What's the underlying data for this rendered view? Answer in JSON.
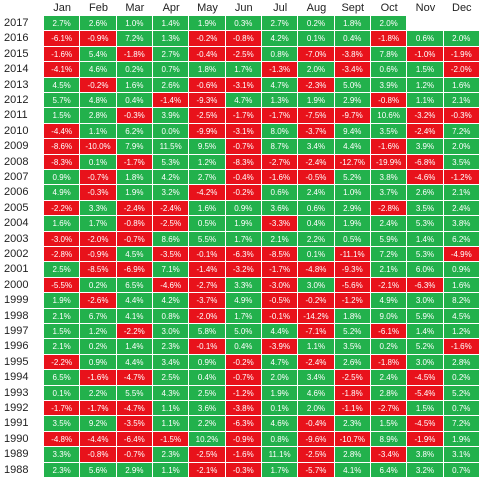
{
  "colors": {
    "positive": "#22b14c",
    "negative": "#e8121b"
  },
  "months": [
    "Jan",
    "Feb",
    "Mar",
    "Apr",
    "May",
    "Jun",
    "Jul",
    "Aug",
    "Sept",
    "Oct",
    "Nov",
    "Dec"
  ],
  "rows": [
    {
      "year": "2017",
      "vals": [
        "2.7%",
        "2.6%",
        "1.0%",
        "1.4%",
        "1.9%",
        "0.3%",
        "2.7%",
        "0.2%",
        "1.8%",
        "2.0%",
        "",
        ""
      ]
    },
    {
      "year": "2016",
      "vals": [
        "-6.1%",
        "-0.9%",
        "7.2%",
        "1.3%",
        "-0.2%",
        "-0.8%",
        "4.2%",
        "0.1%",
        "0.4%",
        "-1.8%",
        "0.6%",
        "2.0%"
      ]
    },
    {
      "year": "2015",
      "vals": [
        "-1.6%",
        "5.4%",
        "-1.8%",
        "2.7%",
        "-0.4%",
        "-2.5%",
        "0.8%",
        "-7.0%",
        "-3.8%",
        "7.8%",
        "-1.0%",
        "-1.9%"
      ]
    },
    {
      "year": "2014",
      "vals": [
        "-4.1%",
        "4.6%",
        "0.2%",
        "0.7%",
        "1.8%",
        "1.7%",
        "-1.3%",
        "2.0%",
        "-3.4%",
        "0.6%",
        "1.5%",
        "-2.0%"
      ]
    },
    {
      "year": "2013",
      "vals": [
        "4.5%",
        "-0.2%",
        "1.6%",
        "2.6%",
        "-0.6%",
        "-3.1%",
        "4.7%",
        "-2.3%",
        "5.0%",
        "3.9%",
        "1.2%",
        "1.6%"
      ]
    },
    {
      "year": "2012",
      "vals": [
        "5.7%",
        "4.8%",
        "0.4%",
        "-1.4%",
        "-9.3%",
        "4.7%",
        "1.3%",
        "1.9%",
        "2.9%",
        "-0.8%",
        "1.1%",
        "2.1%"
      ]
    },
    {
      "year": "2011",
      "vals": [
        "1.5%",
        "2.8%",
        "-0.3%",
        "3.9%",
        "-2.5%",
        "-1.7%",
        "-1.7%",
        "-7.5%",
        "-9.7%",
        "10.6%",
        "-3.2%",
        "-0.3%"
      ]
    },
    {
      "year": "2010",
      "vals": [
        "-4.4%",
        "1.1%",
        "6.2%",
        "0.0%",
        "-9.9%",
        "-3.1%",
        "8.0%",
        "-3.7%",
        "9.4%",
        "3.5%",
        "-2.4%",
        "7.2%"
      ]
    },
    {
      "year": "2009",
      "vals": [
        "-8.6%",
        "-10.0%",
        "7.9%",
        "11.5%",
        "9.5%",
        "-0.7%",
        "8.7%",
        "3.4%",
        "4.4%",
        "-1.6%",
        "3.9%",
        "2.0%"
      ]
    },
    {
      "year": "2008",
      "vals": [
        "-8.3%",
        "0.1%",
        "-1.7%",
        "5.3%",
        "1.2%",
        "-8.3%",
        "-2.7%",
        "-2.4%",
        "-12.7%",
        "-19.9%",
        "-6.8%",
        "3.5%"
      ]
    },
    {
      "year": "2007",
      "vals": [
        "0.9%",
        "-0.7%",
        "1.8%",
        "4.2%",
        "2.7%",
        "-0.4%",
        "-1.6%",
        "-0.5%",
        "5.2%",
        "3.8%",
        "-4.6%",
        "-1.2%"
      ]
    },
    {
      "year": "2006",
      "vals": [
        "4.9%",
        "-0.3%",
        "1.9%",
        "3.2%",
        "-4.2%",
        "-0.2%",
        "0.6%",
        "2.4%",
        "1.0%",
        "3.7%",
        "2.6%",
        "2.1%"
      ]
    },
    {
      "year": "2005",
      "vals": [
        "-2.2%",
        "3.3%",
        "-2.4%",
        "-2.4%",
        "1.6%",
        "0.9%",
        "3.6%",
        "0.6%",
        "2.9%",
        "-2.8%",
        "3.5%",
        "2.4%"
      ]
    },
    {
      "year": "2004",
      "vals": [
        "1.6%",
        "1.7%",
        "-0.8%",
        "-2.5%",
        "0.5%",
        "1.9%",
        "-3.3%",
        "0.4%",
        "1.9%",
        "2.4%",
        "5.3%",
        "3.8%"
      ]
    },
    {
      "year": "2003",
      "vals": [
        "-3.0%",
        "-2.0%",
        "-0.7%",
        "8.6%",
        "5.5%",
        "1.7%",
        "2.1%",
        "2.2%",
        "0.5%",
        "5.9%",
        "1.4%",
        "6.2%"
      ]
    },
    {
      "year": "2002",
      "vals": [
        "-2.8%",
        "-0.9%",
        "4.5%",
        "-3.5%",
        "-0.1%",
        "-6.3%",
        "-8.5%",
        "0.1%",
        "-11.1%",
        "7.2%",
        "5.3%",
        "-4.9%"
      ]
    },
    {
      "year": "2001",
      "vals": [
        "2.5%",
        "-8.5%",
        "-6.9%",
        "7.1%",
        "-1.4%",
        "-3.2%",
        "-1.7%",
        "-4.8%",
        "-9.3%",
        "2.1%",
        "6.0%",
        "0.9%"
      ]
    },
    {
      "year": "2000",
      "vals": [
        "-5.5%",
        "0.2%",
        "6.5%",
        "-4.6%",
        "-2.7%",
        "3.3%",
        "-3.0%",
        "3.0%",
        "-5.6%",
        "-2.1%",
        "-6.3%",
        "1.6%"
      ]
    },
    {
      "year": "1999",
      "vals": [
        "1.9%",
        "-2.6%",
        "4.4%",
        "4.2%",
        "-3.7%",
        "4.9%",
        "-0.5%",
        "-0.2%",
        "-1.2%",
        "4.9%",
        "3.0%",
        "8.2%"
      ]
    },
    {
      "year": "1998",
      "vals": [
        "2.1%",
        "6.7%",
        "4.1%",
        "0.8%",
        "-2.0%",
        "1.7%",
        "-0.1%",
        "-14.2%",
        "1.8%",
        "9.0%",
        "5.9%",
        "4.5%"
      ]
    },
    {
      "year": "1997",
      "vals": [
        "1.5%",
        "1.2%",
        "-2.2%",
        "3.0%",
        "5.8%",
        "5.0%",
        "4.4%",
        "-7.1%",
        "5.2%",
        "-6.1%",
        "1.4%",
        "1.2%"
      ]
    },
    {
      "year": "1996",
      "vals": [
        "2.1%",
        "0.2%",
        "1.4%",
        "2.3%",
        "-0.1%",
        "0.4%",
        "-3.9%",
        "1.1%",
        "3.5%",
        "0.2%",
        "5.2%",
        "-1.6%"
      ]
    },
    {
      "year": "1995",
      "vals": [
        "-2.2%",
        "0.9%",
        "4.4%",
        "3.4%",
        "0.9%",
        "-0.2%",
        "4.7%",
        "-2.4%",
        "2.6%",
        "-1.8%",
        "3.0%",
        "2.8%"
      ]
    },
    {
      "year": "1994",
      "vals": [
        "6.5%",
        "-1.6%",
        "-4.7%",
        "2.5%",
        "0.4%",
        "-0.7%",
        "2.0%",
        "3.4%",
        "-2.5%",
        "2.4%",
        "-4.5%",
        "0.2%"
      ]
    },
    {
      "year": "1993",
      "vals": [
        "0.1%",
        "2.2%",
        "5.5%",
        "4.3%",
        "2.5%",
        "-1.2%",
        "1.9%",
        "4.6%",
        "-1.8%",
        "2.8%",
        "-5.4%",
        "5.2%"
      ]
    },
    {
      "year": "1992",
      "vals": [
        "-1.7%",
        "-1.7%",
        "-4.7%",
        "1.1%",
        "3.6%",
        "-3.8%",
        "0.1%",
        "2.0%",
        "-1.1%",
        "-2.7%",
        "1.5%",
        "0.7%"
      ]
    },
    {
      "year": "1991",
      "vals": [
        "3.5%",
        "9.2%",
        "-3.5%",
        "1.1%",
        "2.2%",
        "-6.3%",
        "4.6%",
        "-0.4%",
        "2.3%",
        "1.5%",
        "-4.5%",
        "7.2%"
      ]
    },
    {
      "year": "1990",
      "vals": [
        "-4.8%",
        "-4.4%",
        "-6.4%",
        "-1.5%",
        "10.2%",
        "-0.9%",
        "0.8%",
        "-9.6%",
        "-10.7%",
        "8.9%",
        "-1.9%",
        "1.9%"
      ]
    },
    {
      "year": "1989",
      "vals": [
        "3.3%",
        "-0.8%",
        "-0.7%",
        "2.3%",
        "-2.5%",
        "-1.6%",
        "11.1%",
        "-2.5%",
        "2.8%",
        "-3.4%",
        "3.8%",
        "3.1%"
      ]
    },
    {
      "year": "1988",
      "vals": [
        "2.3%",
        "5.6%",
        "2.9%",
        "1.1%",
        "-2.1%",
        "-0.3%",
        "1.7%",
        "-5.7%",
        "4.1%",
        "6.4%",
        "3.2%",
        "0.7%"
      ]
    }
  ]
}
